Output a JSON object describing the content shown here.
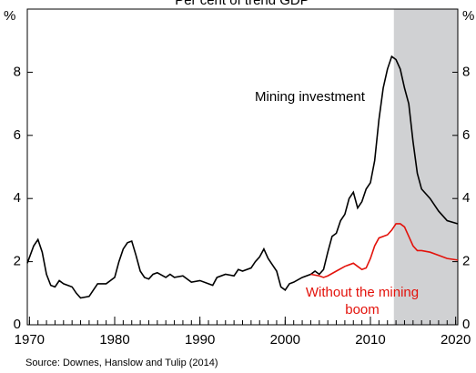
{
  "chart_data": {
    "type": "line",
    "title": "Per cent of trend GDP",
    "y_unit": "%",
    "source": "Source: Downes, Hanslow and Tulip (2014)",
    "xlim": [
      1969.75,
      2020.25
    ],
    "ylim": [
      0,
      10
    ],
    "xticks": [
      1970,
      1980,
      1990,
      2000,
      2010,
      2020
    ],
    "xminor_ticks": [
      1970,
      1971,
      1972,
      1973,
      1974,
      1975,
      1976,
      1977,
      1978,
      1979,
      1980,
      1981,
      1982,
      1983,
      1984,
      1985,
      1986,
      1987,
      1988,
      1989,
      1990,
      1991,
      1992,
      1993,
      1994,
      1995,
      1996,
      1997,
      1998,
      1999,
      2000,
      2001,
      2002,
      2003,
      2004,
      2005,
      2006,
      2007,
      2008,
      2009,
      2010,
      2011,
      2012,
      2013,
      2014,
      2015,
      2016,
      2017,
      2018,
      2019,
      2020
    ],
    "yticks": [
      0,
      2,
      4,
      6,
      8
    ],
    "shade": {
      "color": "#d0d1d3",
      "xlim": [
        2012.75,
        2020.25
      ]
    },
    "series": [
      {
        "name": "Mining investment",
        "color": "#000000",
        "x": [
          1969.75,
          1970.5,
          1971,
          1971.5,
          1972,
          1972.5,
          1973,
          1973.5,
          1974,
          1975,
          1975.5,
          1976,
          1977,
          1977.5,
          1978,
          1979,
          1980,
          1980.5,
          1981,
          1981.5,
          1982,
          1982.5,
          1983,
          1983.5,
          1984,
          1984.5,
          1985,
          1986,
          1986.5,
          1987,
          1988,
          1989,
          1990,
          1991,
          1991.5,
          1992,
          1993,
          1994,
          1994.5,
          1995,
          1996,
          1996.5,
          1997,
          1997.5,
          1998,
          1998.5,
          1999,
          1999.5,
          2000,
          2000.5,
          2001,
          2002,
          2003,
          2003.5,
          2004,
          2004.5,
          2005,
          2005.5,
          2006,
          2006.5,
          2007,
          2007.5,
          2008,
          2008.5,
          2009,
          2009.5,
          2010,
          2010.5,
          2011,
          2011.5,
          2012,
          2012.5,
          2013,
          2013.5,
          2014,
          2014.5,
          2015,
          2015.5,
          2016,
          2017,
          2018,
          2019,
          2020.25
        ],
        "values": [
          1.95,
          2.5,
          2.7,
          2.3,
          1.6,
          1.25,
          1.2,
          1.4,
          1.3,
          1.2,
          1.0,
          0.85,
          0.9,
          1.1,
          1.3,
          1.3,
          1.5,
          2.0,
          2.4,
          2.6,
          2.65,
          2.2,
          1.7,
          1.5,
          1.45,
          1.6,
          1.65,
          1.5,
          1.6,
          1.5,
          1.55,
          1.35,
          1.4,
          1.3,
          1.25,
          1.5,
          1.6,
          1.55,
          1.75,
          1.7,
          1.8,
          2.0,
          2.15,
          2.4,
          2.1,
          1.9,
          1.7,
          1.2,
          1.1,
          1.3,
          1.35,
          1.5,
          1.6,
          1.7,
          1.6,
          1.75,
          2.3,
          2.8,
          2.9,
          3.3,
          3.5,
          4.0,
          4.2,
          3.7,
          3.9,
          4.3,
          4.5,
          5.2,
          6.5,
          7.5,
          8.1,
          8.5,
          8.4,
          8.1,
          7.5,
          7.0,
          5.8,
          4.8,
          4.3,
          4.0,
          3.6,
          3.3,
          3.2
        ]
      },
      {
        "name": "Without the mining boom",
        "color": "#e3120b",
        "x": [
          2003,
          2004,
          2004.5,
          2005,
          2006,
          2007,
          2008,
          2008.5,
          2009,
          2009.5,
          2010,
          2010.5,
          2011,
          2012,
          2012.5,
          2013,
          2013.5,
          2014,
          2014.5,
          2015,
          2015.5,
          2016,
          2017,
          2018,
          2019,
          2020.25
        ],
        "values": [
          1.6,
          1.55,
          1.5,
          1.55,
          1.7,
          1.85,
          1.95,
          1.85,
          1.75,
          1.8,
          2.1,
          2.5,
          2.75,
          2.85,
          3.0,
          3.2,
          3.2,
          3.1,
          2.8,
          2.5,
          2.35,
          2.35,
          2.3,
          2.2,
          2.1,
          2.05
        ]
      }
    ]
  }
}
